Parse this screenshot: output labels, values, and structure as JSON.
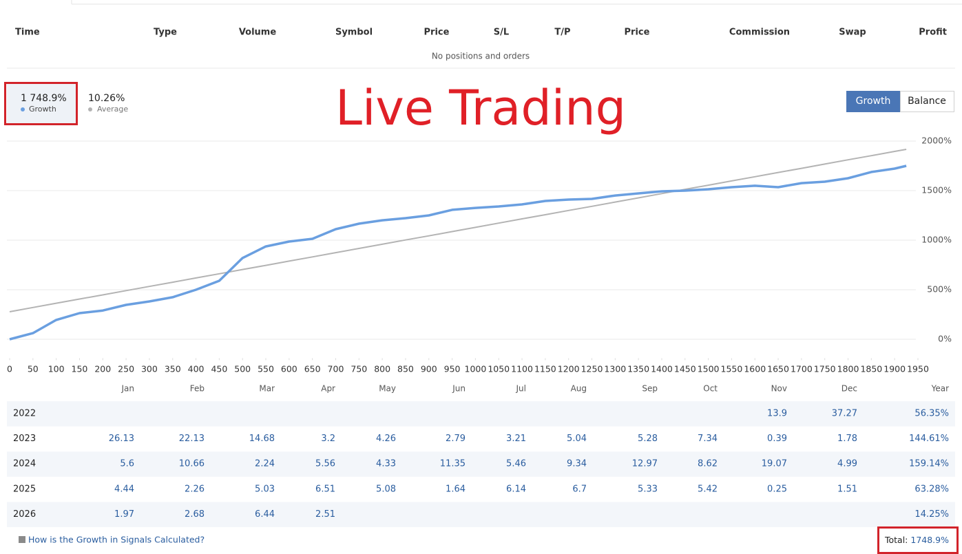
{
  "positions": {
    "columns": [
      "Time",
      "Type",
      "Volume",
      "Symbol",
      "Price",
      "S/L",
      "T/P",
      "Price",
      "Commission",
      "Swap",
      "Profit"
    ],
    "empty_message": "No positions and orders"
  },
  "annotation": "Live Trading",
  "tabs": [
    "Growth",
    "Balance"
  ],
  "chart_data": {
    "type": "line",
    "x": [
      0,
      50,
      100,
      150,
      200,
      250,
      300,
      350,
      400,
      450,
      500,
      550,
      600,
      650,
      700,
      750,
      800,
      850,
      900,
      950,
      1000,
      1050,
      1100,
      1150,
      1200,
      1250,
      1300,
      1350,
      1400,
      1450,
      1500,
      1550,
      1600,
      1650,
      1700,
      1750,
      1800,
      1850,
      1900,
      1925
    ],
    "series": [
      {
        "name": "Growth",
        "summary": "1 748.9%",
        "color": "#6a9fe0",
        "values": [
          0,
          62,
          195,
          264,
          290,
          347,
          382,
          424,
          500,
          590,
          820,
          937,
          986,
          1014,
          1111,
          1167,
          1201,
          1222,
          1250,
          1306,
          1326,
          1340,
          1361,
          1396,
          1410,
          1417,
          1451,
          1472,
          1493,
          1500,
          1514,
          1535,
          1549,
          1535,
          1576,
          1590,
          1625,
          1688,
          1722,
          1750
        ]
      },
      {
        "name": "Average",
        "summary": "10.26%",
        "color": "#b3b3b3",
        "values": [
          278,
          321,
          364,
          406,
          448,
          491,
          533,
          576,
          619,
          661,
          704,
          746,
          789,
          831,
          874,
          917,
          959,
          1002,
          1044,
          1087,
          1129,
          1172,
          1215,
          1257,
          1300,
          1342,
          1385,
          1427,
          1470,
          1513,
          1555,
          1598,
          1640,
          1683,
          1725,
          1768,
          1811,
          1853,
          1896,
          1917
        ]
      }
    ],
    "xlim": [
      0,
      1950
    ],
    "xticks": [
      0,
      50,
      100,
      150,
      200,
      250,
      300,
      350,
      400,
      450,
      500,
      550,
      600,
      650,
      700,
      750,
      800,
      850,
      900,
      950,
      1000,
      1050,
      1100,
      1150,
      1200,
      1250,
      1300,
      1350,
      1400,
      1450,
      1500,
      1550,
      1600,
      1650,
      1700,
      1750,
      1800,
      1850,
      1900,
      1950
    ],
    "ylim": [
      -190,
      2100
    ],
    "yticks": [
      {
        "value": 0,
        "label": "0%"
      },
      {
        "value": 500,
        "label": "500%"
      },
      {
        "value": 1000,
        "label": "1000%"
      },
      {
        "value": 1500,
        "label": "1500%"
      },
      {
        "value": 2000,
        "label": "2000%"
      }
    ],
    "grid": true
  },
  "monthly_table": {
    "columns": [
      "Jan",
      "Feb",
      "Mar",
      "Apr",
      "May",
      "Jun",
      "Jul",
      "Aug",
      "Sep",
      "Oct",
      "Nov",
      "Dec",
      "Year"
    ],
    "rows": [
      {
        "year": "2022",
        "cells": [
          null,
          null,
          null,
          null,
          null,
          null,
          null,
          null,
          null,
          null,
          "13.9",
          "37.27",
          "56.35%"
        ]
      },
      {
        "year": "2023",
        "cells": [
          "26.13",
          "22.13",
          "14.68",
          "3.2",
          "4.26",
          "2.79",
          "3.21",
          "5.04",
          "5.28",
          "7.34",
          "0.39",
          "1.78",
          "144.61%"
        ]
      },
      {
        "year": "2024",
        "cells": [
          "5.6",
          "10.66",
          "2.24",
          "5.56",
          "4.33",
          "11.35",
          "5.46",
          "9.34",
          "12.97",
          "8.62",
          "19.07",
          "4.99",
          "159.14%"
        ]
      },
      {
        "year": "2025",
        "cells": [
          "4.44",
          "2.26",
          "5.03",
          "6.51",
          "5.08",
          "1.64",
          "6.14",
          "6.7",
          "5.33",
          "5.42",
          "0.25",
          "1.51",
          "63.28%"
        ]
      },
      {
        "year": "2026",
        "cells": [
          "1.97",
          "2.68",
          "6.44",
          "2.51",
          null,
          null,
          null,
          null,
          null,
          null,
          null,
          null,
          "14.25%"
        ]
      }
    ]
  },
  "footer": {
    "link": "How is the Growth in Signals Calculated?",
    "total_label": "Total:",
    "total_value": "1748.9%"
  }
}
